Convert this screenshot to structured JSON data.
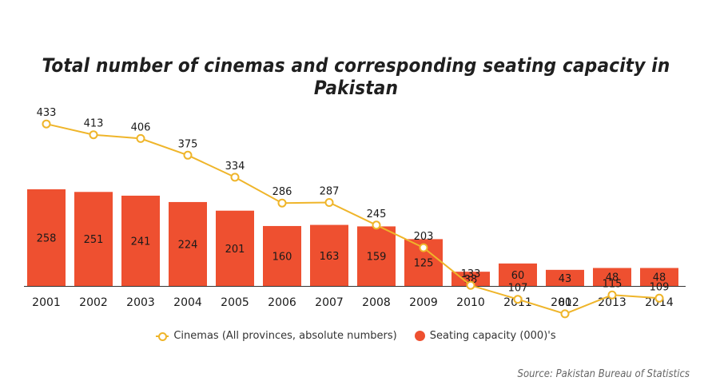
{
  "title": "Total number of cinemas and corresponding seating capacity in Pakistan",
  "source": "Source: Pakistan Bureau of Statistics",
  "legend": {
    "line_label": "Cinemas (All provinces, absolute numbers)",
    "bar_label": "Seating capacity (000)'s"
  },
  "colors": {
    "bar": "#ee5030",
    "line": "#efb52a",
    "axis": "#333333"
  },
  "chart_data": {
    "type": "bar",
    "title": "Total number of cinemas and corresponding seating capacity in Pakistan",
    "categories": [
      "2001",
      "2002",
      "2003",
      "2004",
      "2005",
      "2006",
      "2007",
      "2008",
      "2009",
      "2010",
      "2011",
      "2012",
      "2013",
      "2014"
    ],
    "series": [
      {
        "name": "Seating capacity (000)'s",
        "type": "bar",
        "values": [
          258,
          251,
          241,
          224,
          201,
          160,
          163,
          159,
          125,
          38,
          60,
          43,
          48,
          48
        ]
      },
      {
        "name": "Cinemas (All provinces, absolute numbers)",
        "type": "line",
        "values": [
          433,
          413,
          406,
          375,
          334,
          286,
          287,
          245,
          203,
          133,
          107,
          80,
          115,
          109
        ]
      }
    ],
    "legend_position": "bottom",
    "grid": false
  }
}
